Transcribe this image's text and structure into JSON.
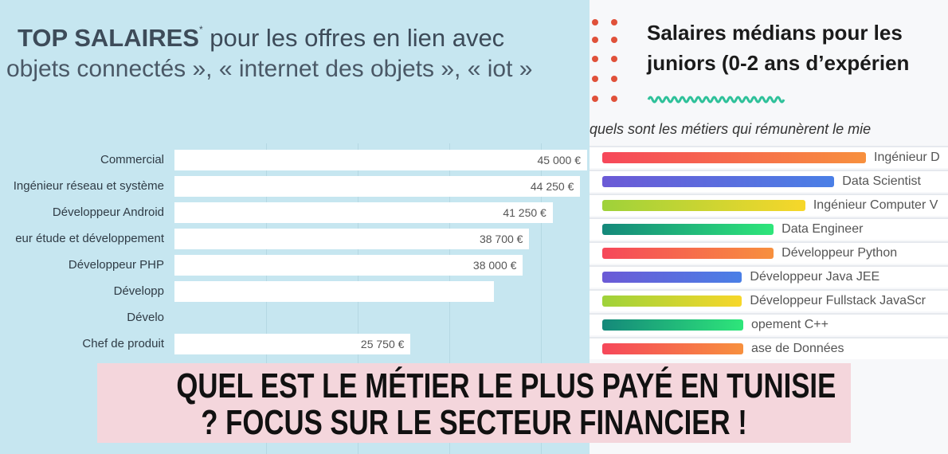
{
  "left_chart": {
    "title_bold": "TOP SALAIRES",
    "title_star": "*",
    "title_rest": " pour les offres en lien avec",
    "title_line2": "objets connectés », « internet des objets », « iot »",
    "chart_data": {
      "type": "bar",
      "orientation": "horizontal",
      "xlim": [
        0,
        45000
      ],
      "grid": true,
      "categories": [
        "Commercial",
        "Ingénieur réseau et système",
        "Développeur Android",
        "eur étude et développement",
        "Développeur PHP",
        "Développ",
        "Dévelo",
        "Chef de produit"
      ],
      "values": [
        45000,
        44250,
        41250,
        38700,
        38000,
        34800,
        null,
        25750
      ],
      "labels": [
        "45 000 €",
        "44 250 €",
        "41 250 €",
        "38 700 €",
        "38 000 €",
        "",
        "",
        "25 750 €"
      ]
    }
  },
  "right_chart": {
    "title_line1": "Salaires médians pour les",
    "title_line2": "juniors (0-2 ans d’expérien",
    "subtitle": "quels sont les métiers qui rémunèrent le mie",
    "chart_data": {
      "type": "bar",
      "orientation": "horizontal",
      "categories": [
        "Ingénieur D",
        "Data Scientist",
        "Ingénieur Computer V",
        "Data Engineer",
        "Développeur Python",
        "Développeur Java JEE",
        "Développeur Fullstack JavaScr",
        "opement C++",
        "ase de Données"
      ],
      "values": [
        100,
        88,
        77,
        65,
        65,
        53,
        53,
        null,
        null
      ],
      "colors": [
        [
          "#f6475a",
          "#f7903e"
        ],
        [
          "#6b5ad6",
          "#4a7fe6"
        ],
        [
          "#9ed23a",
          "#f7d72a"
        ],
        [
          "#14887a",
          "#2ee67a"
        ],
        [
          "#f6475a",
          "#f7903e"
        ],
        [
          "#6b5ad6",
          "#4a7fe6"
        ],
        [
          "#9ed23a",
          "#f7d72a"
        ],
        [
          "#14887a",
          "#2ee67a"
        ],
        [
          "#f6475a",
          "#f7903e"
        ]
      ]
    }
  },
  "banner": {
    "line1": "QUEL EST LE MÉTIER LE PLUS PAYÉ EN TUNISIE",
    "line2": "? FOCUS SUR LE SECTEUR FINANCIER !"
  }
}
